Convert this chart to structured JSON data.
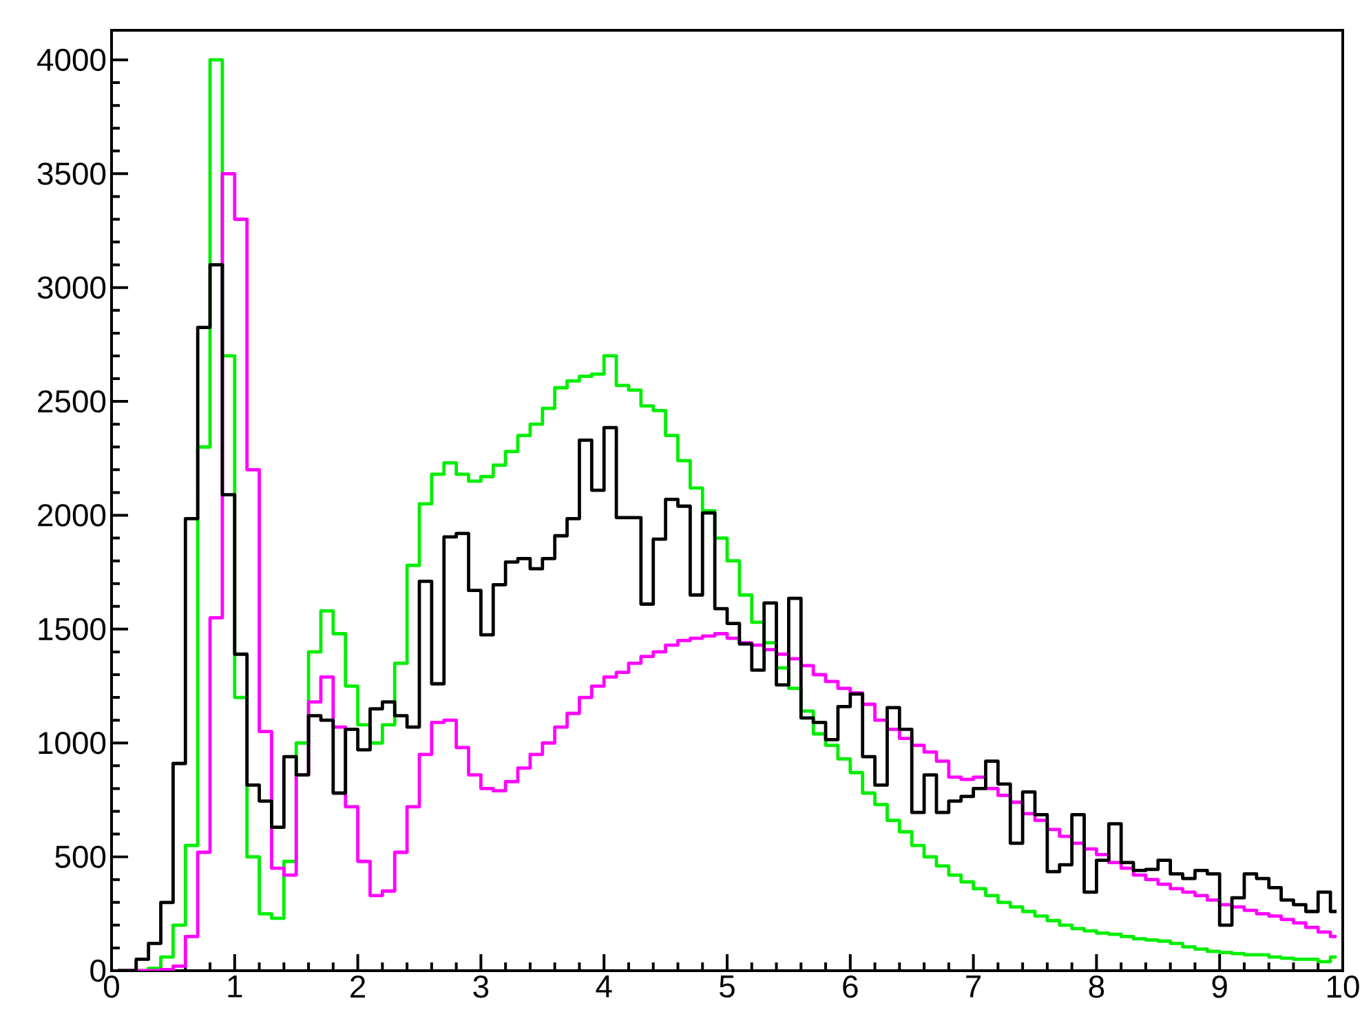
{
  "chart_data": {
    "type": "step",
    "x": [
      0.05,
      0.15,
      0.25,
      0.35,
      0.45,
      0.55,
      0.65,
      0.75,
      0.85,
      0.95,
      1.05,
      1.15,
      1.25,
      1.35,
      1.45,
      1.55,
      1.65,
      1.75,
      1.85,
      1.95,
      2.05,
      2.15,
      2.25,
      2.35,
      2.45,
      2.55,
      2.65,
      2.75,
      2.85,
      2.95,
      3.05,
      3.15,
      3.25,
      3.35,
      3.45,
      3.55,
      3.65,
      3.75,
      3.85,
      3.95,
      4.05,
      4.15,
      4.25,
      4.35,
      4.45,
      4.55,
      4.65,
      4.75,
      4.85,
      4.95,
      5.05,
      5.15,
      5.25,
      5.35,
      5.45,
      5.55,
      5.65,
      5.75,
      5.85,
      5.95,
      6.05,
      6.15,
      6.25,
      6.35,
      6.45,
      6.55,
      6.65,
      6.75,
      6.85,
      6.95,
      7.05,
      7.15,
      7.25,
      7.35,
      7.45,
      7.55,
      7.65,
      7.75,
      7.85,
      7.95,
      8.05,
      8.15,
      8.25,
      8.35,
      8.45,
      8.55,
      8.65,
      8.75,
      8.85,
      8.95,
      9.05,
      9.15,
      9.25,
      9.35,
      9.45,
      9.55,
      9.65,
      9.75,
      9.85,
      9.95
    ],
    "xlim": [
      0,
      10
    ],
    "ylim": [
      0,
      4130
    ],
    "xticks": [
      0,
      1,
      2,
      3,
      4,
      5,
      6,
      7,
      8,
      9,
      10
    ],
    "yticks": [
      0,
      500,
      1000,
      1500,
      2000,
      2500,
      3000,
      3500,
      4000
    ],
    "series": [
      {
        "color": "#00ee00",
        "values": [
          0,
          0,
          0,
          10,
          60,
          200,
          550,
          2300,
          4000,
          2700,
          1200,
          500,
          250,
          230,
          480,
          1000,
          1400,
          1580,
          1480,
          1250,
          1080,
          1000,
          1080,
          1350,
          1780,
          2050,
          2180,
          2230,
          2180,
          2150,
          2170,
          2220,
          2280,
          2350,
          2400,
          2470,
          2560,
          2590,
          2610,
          2620,
          2700,
          2570,
          2550,
          2480,
          2460,
          2350,
          2240,
          2120,
          2020,
          1900,
          1800,
          1650,
          1530,
          1440,
          1330,
          1240,
          1140,
          1040,
          990,
          930,
          870,
          780,
          730,
          660,
          610,
          550,
          500,
          460,
          420,
          390,
          360,
          330,
          300,
          280,
          260,
          240,
          220,
          200,
          185,
          175,
          165,
          160,
          150,
          140,
          135,
          130,
          120,
          105,
          95,
          85,
          80,
          75,
          70,
          70,
          60,
          55,
          50,
          50,
          40,
          60
        ]
      },
      {
        "color": "#ff00ff",
        "values": [
          0,
          0,
          0,
          0,
          5,
          20,
          150,
          520,
          1550,
          3500,
          3300,
          2200,
          1050,
          450,
          420,
          860,
          1180,
          1290,
          1070,
          720,
          480,
          330,
          350,
          520,
          720,
          950,
          1090,
          1100,
          980,
          860,
          800,
          790,
          830,
          890,
          950,
          1000,
          1070,
          1130,
          1200,
          1250,
          1290,
          1310,
          1350,
          1380,
          1400,
          1430,
          1450,
          1460,
          1470,
          1480,
          1460,
          1440,
          1430,
          1410,
          1390,
          1370,
          1340,
          1300,
          1270,
          1240,
          1220,
          1170,
          1100,
          1060,
          1020,
          990,
          960,
          920,
          850,
          840,
          850,
          800,
          770,
          740,
          690,
          660,
          620,
          590,
          560,
          535,
          510,
          475,
          450,
          420,
          400,
          380,
          360,
          345,
          330,
          310,
          290,
          280,
          265,
          250,
          240,
          225,
          210,
          190,
          170,
          150
        ]
      },
      {
        "color": "#000000",
        "values": [
          0,
          0,
          50,
          120,
          300,
          910,
          1985,
          2825,
          3100,
          2090,
          1390,
          815,
          745,
          630,
          940,
          860,
          1120,
          1100,
          780,
          1060,
          970,
          1150,
          1180,
          1120,
          1070,
          1710,
          1260,
          1905,
          1920,
          1670,
          1475,
          1695,
          1795,
          1810,
          1765,
          1810,
          1910,
          1985,
          2330,
          2110,
          2385,
          1990,
          1990,
          1610,
          1895,
          2070,
          2040,
          1650,
          2010,
          1590,
          1525,
          1435,
          1320,
          1615,
          1255,
          1635,
          1110,
          1090,
          1015,
          1160,
          1215,
          940,
          815,
          1155,
          1060,
          695,
          860,
          695,
          745,
          765,
          800,
          920,
          820,
          560,
          785,
          685,
          435,
          465,
          685,
          345,
          485,
          645,
          475,
          440,
          445,
          485,
          425,
          405,
          440,
          425,
          200,
          320,
          425,
          405,
          365,
          310,
          290,
          260,
          345,
          260
        ]
      }
    ]
  }
}
